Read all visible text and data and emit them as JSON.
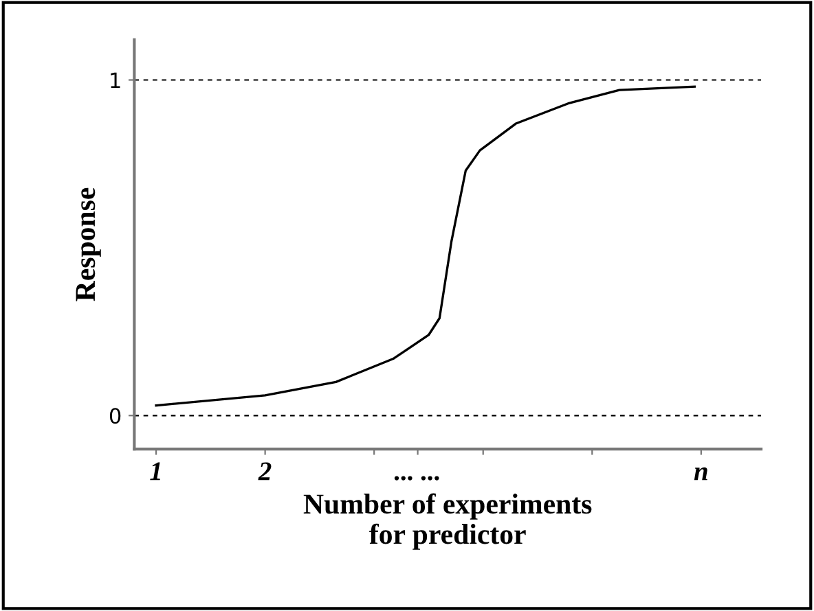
{
  "chart_data": {
    "type": "line",
    "ylabel": "Response",
    "xlabel": "Number of experiments\nfor predictor",
    "x": [
      1,
      2,
      2.65,
      3.18,
      3.5,
      3.6,
      3.71,
      3.84,
      3.97,
      4.3,
      4.78,
      5.25,
      5.94
    ],
    "series": [
      {
        "color": "#000000",
        "values": [
          0.03,
          0.06,
          0.1,
          0.17,
          0.24,
          0.29,
          0.52,
          0.73,
          0.79,
          0.87,
          0.93,
          0.97,
          0.98
        ]
      }
    ],
    "xlim": [
      0.8,
      6.55
    ],
    "ylim": [
      -0.1,
      1.12
    ],
    "xticks": [
      1,
      2,
      {
        "value": 3,
        "label": null
      },
      {
        "value": 3.4,
        "label": "... ..."
      },
      {
        "value": 4,
        "label": null
      },
      {
        "value": 5,
        "label": null
      },
      {
        "value": 6,
        "label": "n"
      }
    ],
    "yticks": [
      0,
      1
    ],
    "ref_lines": [
      {
        "axis": "y",
        "value": 0,
        "line_style": "dashed"
      },
      {
        "axis": "y",
        "value": 1,
        "line_style": "dashed"
      }
    ],
    "grid": false,
    "legend": false,
    "marker": "none",
    "line_style": "solid"
  }
}
